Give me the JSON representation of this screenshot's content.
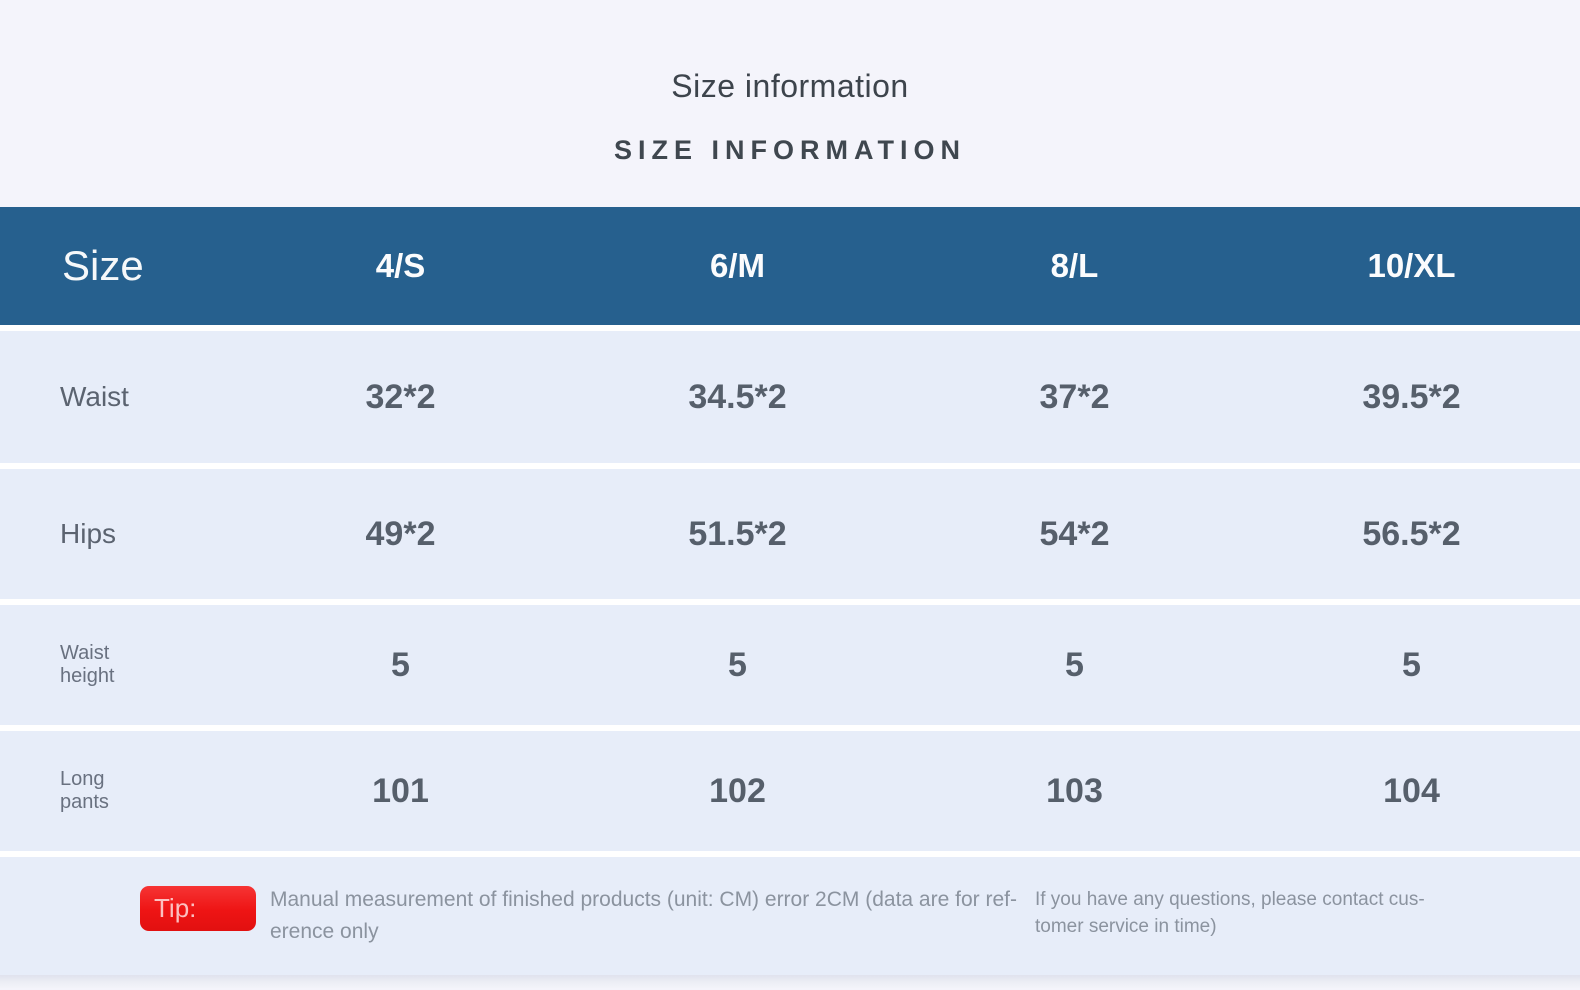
{
  "page": {
    "title": "Size information",
    "subtitle": "SIZE INFORMATION"
  },
  "table": {
    "columns": [
      "Size",
      "4/S",
      "6/M",
      "8/L",
      "10/XL"
    ],
    "rows": [
      {
        "label": "Waist",
        "values": [
          "32*2",
          "34.5*2",
          "37*2",
          "39.5*2"
        ]
      },
      {
        "label": "Hips",
        "values": [
          "49*2",
          "51.5*2",
          "54*2",
          "56.5*2"
        ]
      },
      {
        "label": "Waist\nheight",
        "values": [
          "5",
          "5",
          "5",
          "5"
        ]
      },
      {
        "label": "Long\npants",
        "values": [
          "101",
          "102",
          "103",
          "104"
        ]
      }
    ],
    "unit": "CM"
  },
  "tip": {
    "badge": "Tip:",
    "text": "Manual measurement of finished products (unit: CM) error 2CM (data are for ref-\nerence only",
    "note": "If you have any questions, please contact cus-\ntomer service in time)"
  },
  "colors": {
    "page_bg": "#f4f4fb",
    "header_bg": "#26608e",
    "row_bg": "#e7edf9",
    "badge_red": "#ee1414",
    "title_text": "#3d444c",
    "value_text": "#565f6b",
    "muted_text": "#8b939f"
  }
}
